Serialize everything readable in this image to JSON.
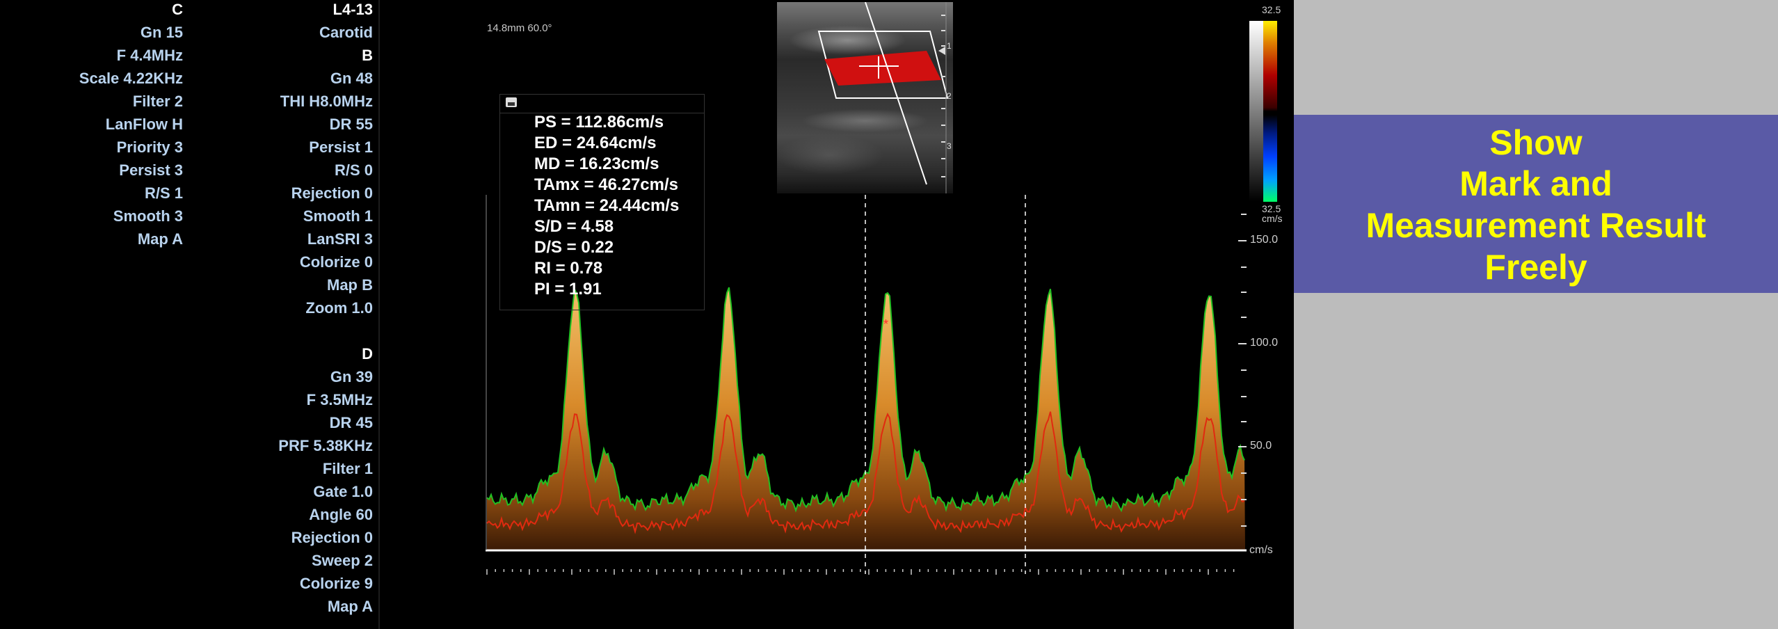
{
  "left_params": [
    "C",
    "Gn 15",
    "F 4.4MHz",
    "Scale 4.22KHz",
    "Filter 2",
    "LanFlow H",
    "Priority 3",
    "Persist 3",
    "R/S 1",
    "Smooth 3",
    "Map A"
  ],
  "mid_params_b": [
    "L4-13",
    "Carotid",
    "B",
    "Gn 48",
    "THI H8.0MHz",
    "DR 55",
    "Persist 1",
    "R/S 0",
    "Rejection 0",
    "Smooth 1",
    "LanSRI 3",
    "Colorize 0",
    "Map B",
    "Zoom 1.0"
  ],
  "mid_params_d": [
    "D",
    "Gn 39",
    "F 3.5MHz",
    "DR 45",
    "PRF 5.38KHz",
    "Filter 1",
    "Gate 1.0",
    "Angle 60",
    "Rejection 0",
    "Sweep 2",
    "Colorize 9",
    "Map A"
  ],
  "depth_info": "14.8mm   60.0°",
  "measurements": [
    "PS = 112.86cm/s",
    "ED = 24.64cm/s",
    "MD = 16.23cm/s",
    "TAmx = 46.27cm/s",
    "TAmn = 24.44cm/s",
    "S/D = 4.58",
    "D/S = 0.22",
    "RI = 0.78",
    "PI = 1.91"
  ],
  "velocity_scale": {
    "label_150": "150.0",
    "label_100": "100.0",
    "label_50": "50.0",
    "unit": "cm/s"
  },
  "color_scale": {
    "top": "32.5",
    "bottom": "32.5",
    "unit": "cm/s"
  },
  "bmode_depth_marks": [
    "1",
    "2",
    "3"
  ],
  "banner": {
    "lines": [
      "Show",
      "Mark and",
      "Measurement Result",
      "Freely"
    ],
    "text_color": "#ffff00",
    "bg_color": "#5a5aa6"
  },
  "colors": {
    "spectrum_max_trace": "#22c022",
    "spectrum_mean_trace": "#e02a10",
    "param_text": "#b9d3ee"
  },
  "icons": {
    "save": "save-icon"
  }
}
